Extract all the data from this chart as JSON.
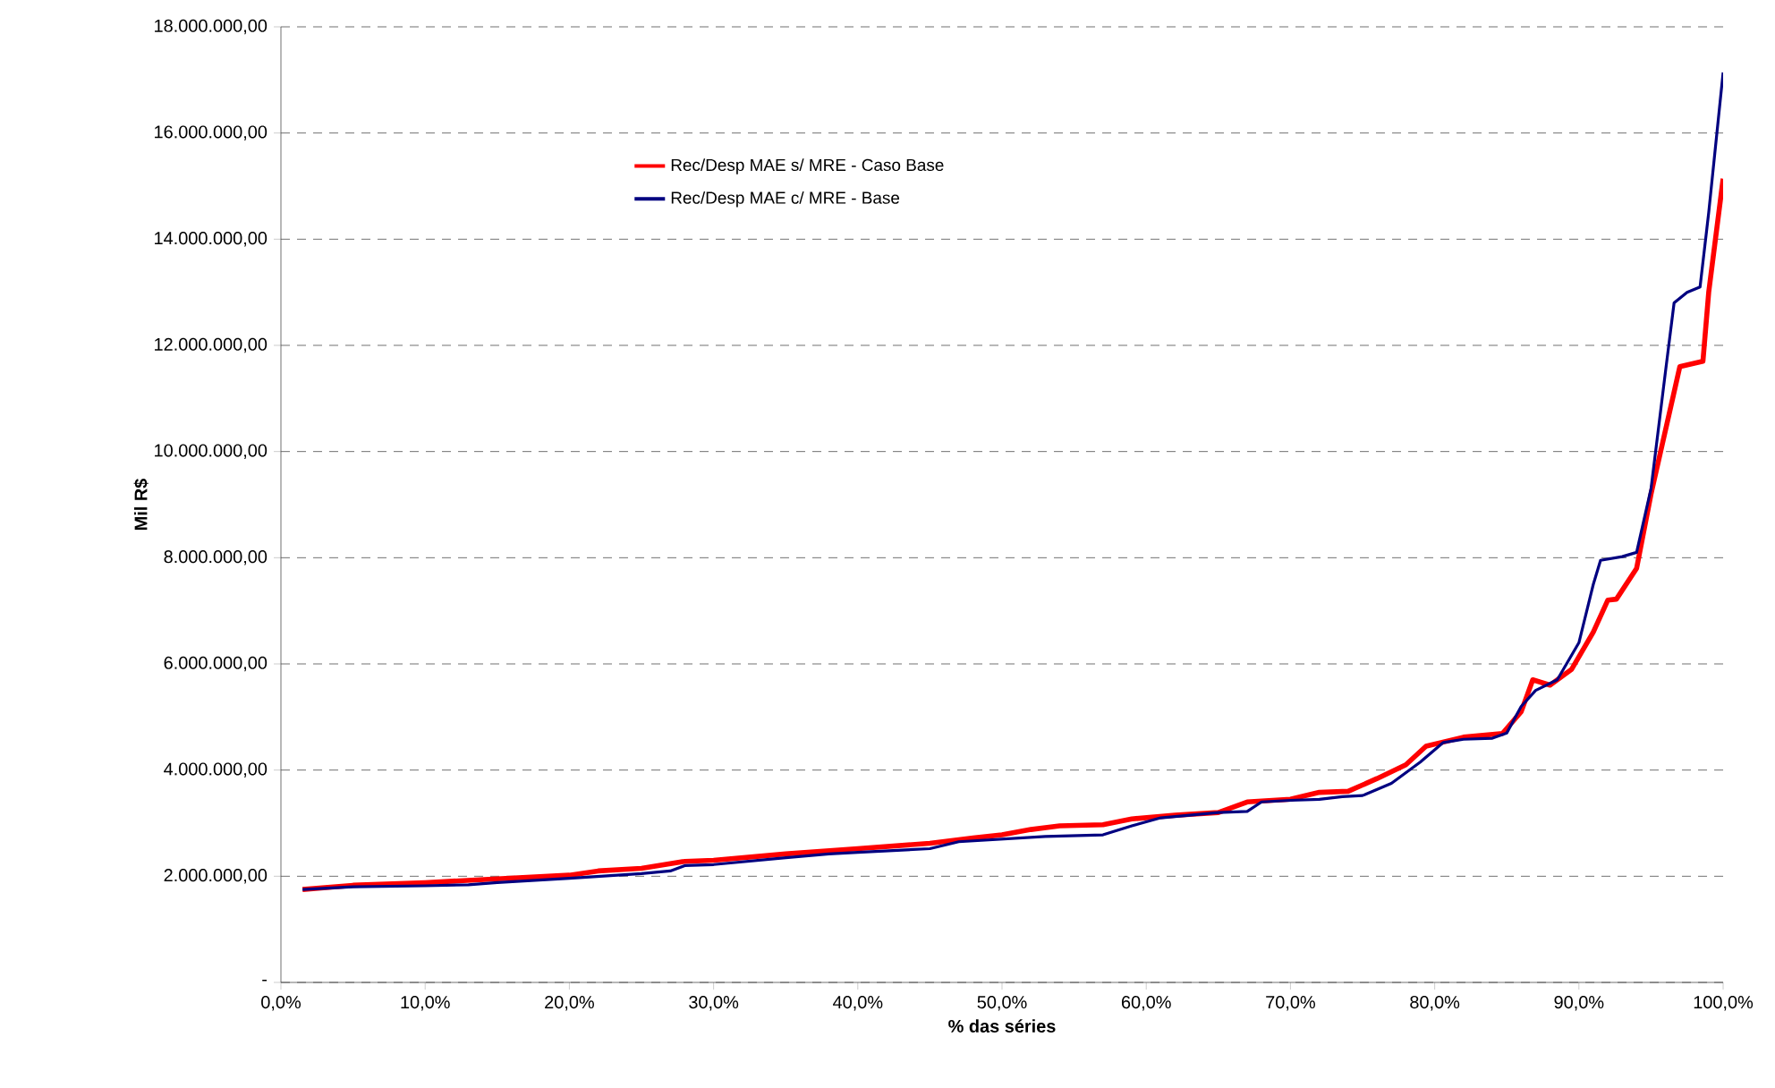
{
  "chart_data": {
    "type": "line",
    "xlabel": "% das séries",
    "ylabel": "Mil R$",
    "xlim": [
      0,
      100
    ],
    "ylim": [
      0,
      18000000
    ],
    "xticks": [
      {
        "value": 0,
        "label": "0,0%"
      },
      {
        "value": 10,
        "label": "10,0%"
      },
      {
        "value": 20,
        "label": "20,0%"
      },
      {
        "value": 30,
        "label": "30,0%"
      },
      {
        "value": 40,
        "label": "40,0%"
      },
      {
        "value": 50,
        "label": "50,0%"
      },
      {
        "value": 60,
        "label": "60,0%"
      },
      {
        "value": 70,
        "label": "70,0%"
      },
      {
        "value": 80,
        "label": "80,0%"
      },
      {
        "value": 90,
        "label": "90,0%"
      },
      {
        "value": 100,
        "label": "100,0%"
      }
    ],
    "yticks": [
      {
        "value": 0,
        "label": "-"
      },
      {
        "value": 2000000,
        "label": "2.000.000,00"
      },
      {
        "value": 4000000,
        "label": "4.000.000,00"
      },
      {
        "value": 6000000,
        "label": "6.000.000,00"
      },
      {
        "value": 8000000,
        "label": "8.000.000,00"
      },
      {
        "value": 10000000,
        "label": "10.000.000,00"
      },
      {
        "value": 12000000,
        "label": "12.000.000,00"
      },
      {
        "value": 14000000,
        "label": "14.000.000,00"
      },
      {
        "value": 16000000,
        "label": "16.000.000,00"
      },
      {
        "value": 18000000,
        "label": "18.000.000,00"
      }
    ],
    "grid": "y",
    "legend": "top left",
    "marker": "none",
    "line_style": "solid",
    "series": [
      {
        "name": "Rec/Desp MAE s/ MRE - Caso Base",
        "color": "#ff0000",
        "x": [
          1.5,
          5,
          10,
          15,
          20,
          22,
          25,
          28,
          30,
          35,
          40,
          45,
          48,
          50,
          52,
          54,
          57,
          59,
          62,
          65,
          67,
          70,
          72,
          74,
          76,
          78,
          79.4,
          82,
          84.7,
          86,
          86.8,
          88,
          89.5,
          91,
          92,
          92.6,
          94,
          95,
          96.5,
          97,
          98.6,
          99,
          100
        ],
        "values": [
          1750000,
          1830000,
          1880000,
          1950000,
          2020000,
          2100000,
          2150000,
          2280000,
          2300000,
          2420000,
          2520000,
          2620000,
          2720000,
          2780000,
          2880000,
          2950000,
          2970000,
          3080000,
          3150000,
          3200000,
          3400000,
          3450000,
          3580000,
          3600000,
          3840000,
          4100000,
          4450000,
          4620000,
          4690000,
          5100000,
          5700000,
          5600000,
          5900000,
          6600000,
          7200000,
          7220000,
          7800000,
          9200000,
          11000000,
          11600000,
          11700000,
          13000000,
          15140000
        ]
      },
      {
        "name": "Rec/Desp MAE c/ MRE - Base",
        "color": "#000080",
        "x": [
          1.5,
          5,
          10,
          13,
          15,
          20,
          25,
          27,
          28,
          30,
          35,
          38,
          40,
          45,
          47,
          50,
          53,
          57,
          59,
          61,
          65,
          67,
          68,
          70,
          72,
          73.6,
          75,
          77,
          79,
          80.6,
          82,
          84,
          85,
          86,
          87,
          88.5,
          90,
          91,
          91.5,
          93,
          94,
          95,
          96,
          96.6,
          97.5,
          98.4,
          99,
          100
        ],
        "values": [
          1750000,
          1800000,
          1820000,
          1840000,
          1880000,
          1960000,
          2050000,
          2100000,
          2200000,
          2220000,
          2350000,
          2420000,
          2450000,
          2520000,
          2650000,
          2700000,
          2750000,
          2780000,
          2950000,
          3100000,
          3200000,
          3220000,
          3400000,
          3430000,
          3450000,
          3500000,
          3520000,
          3750000,
          4150000,
          4520000,
          4580000,
          4600000,
          4700000,
          5200000,
          5500000,
          5700000,
          6400000,
          7500000,
          7950000,
          8020000,
          8100000,
          9300000,
          11500000,
          12800000,
          13000000,
          13100000,
          14500000,
          17140000
        ]
      }
    ]
  }
}
